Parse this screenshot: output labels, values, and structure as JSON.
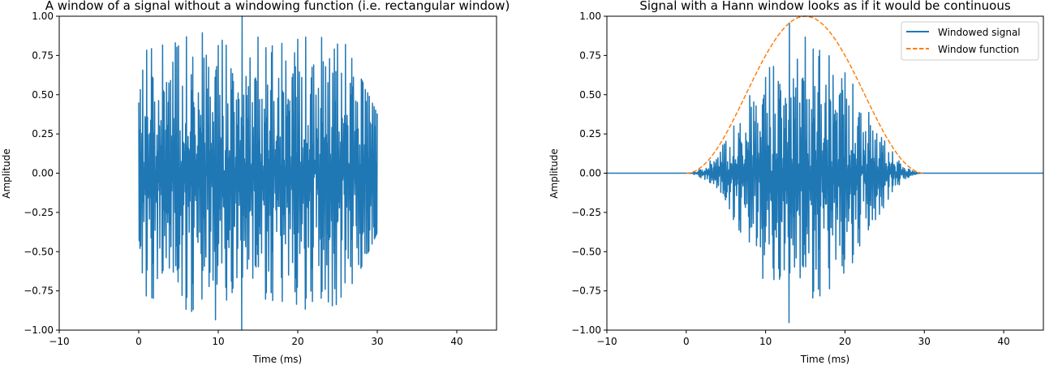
{
  "chart_data": [
    {
      "type": "line",
      "title": "A window of a signal without a windowing function (i.e. rectangular window)",
      "xlabel": "Time (ms)",
      "ylabel": "Amplitude",
      "xlim": [
        -10,
        45
      ],
      "ylim": [
        -1.0,
        1.0
      ],
      "xticks": [
        -10,
        0,
        10,
        20,
        30,
        40
      ],
      "xtick_labels": [
        "−10",
        "0",
        "10",
        "20",
        "30",
        "40"
      ],
      "yticks": [
        -1.0,
        -0.75,
        -0.5,
        -0.25,
        0.0,
        0.25,
        0.5,
        0.75,
        1.0
      ],
      "ytick_labels": [
        "−1.00",
        "−0.75",
        "−0.50",
        "−0.25",
        "0.00",
        "0.25",
        "0.50",
        "0.75",
        "1.00"
      ],
      "grid": false,
      "legend": null,
      "series": [
        {
          "color": "#1f77b4",
          "style": "solid",
          "signal": {
            "x_range": [
              0,
              30
            ],
            "sample_step": 0.05,
            "frequencies": [
              0.4,
              1.0,
              2.0,
              4.0
            ],
            "amplitudes": [
              0.25,
              0.25,
              0.25,
              0.25
            ],
            "peak_envelope": [
              [
                0,
                0.45
              ],
              [
                0.8,
                0.78
              ],
              [
                5,
                0.85
              ],
              [
                13,
                1.0
              ],
              [
                16,
                0.8
              ],
              [
                22,
                0.88
              ],
              [
                26,
                0.82
              ],
              [
                30,
                0.38
              ]
            ]
          }
        }
      ]
    },
    {
      "type": "line",
      "title": "Signal with a Hann window looks as if it would be continuous",
      "xlabel": "Time (ms)",
      "ylabel": "Amplitude",
      "xlim": [
        -10,
        45
      ],
      "ylim": [
        -1.0,
        1.0
      ],
      "xticks": [
        -10,
        0,
        10,
        20,
        30,
        40
      ],
      "xtick_labels": [
        "−10",
        "0",
        "10",
        "20",
        "30",
        "40"
      ],
      "yticks": [
        -1.0,
        -0.75,
        -0.5,
        -0.25,
        0.0,
        0.25,
        0.5,
        0.75,
        1.0
      ],
      "ytick_labels": [
        "−1.00",
        "−0.75",
        "−0.50",
        "−0.25",
        "0.00",
        "0.25",
        "0.50",
        "0.75",
        "1.00"
      ],
      "grid": false,
      "legend": "top-right",
      "series": [
        {
          "name": "Windowed signal",
          "color": "#1f77b4",
          "style": "solid",
          "zero_extent": [
            -10,
            45
          ],
          "signal": {
            "x_range": [
              0,
              30
            ],
            "sample_step": 0.05,
            "frequencies": [
              0.4,
              1.0,
              2.0,
              4.0
            ],
            "amplitudes": [
              0.25,
              0.25,
              0.25,
              0.25
            ],
            "peak_envelope": [
              [
                0,
                0.45
              ],
              [
                0.8,
                0.78
              ],
              [
                5,
                0.85
              ],
              [
                13,
                1.0
              ],
              [
                16,
                0.8
              ],
              [
                22,
                0.88
              ],
              [
                26,
                0.82
              ],
              [
                30,
                0.38
              ]
            ],
            "window": "hann"
          }
        },
        {
          "name": "Window function",
          "color": "#ff7f0e",
          "style": "dashed",
          "function": "hann",
          "x_range": [
            0,
            30
          ],
          "peak": 1.0
        }
      ]
    }
  ]
}
